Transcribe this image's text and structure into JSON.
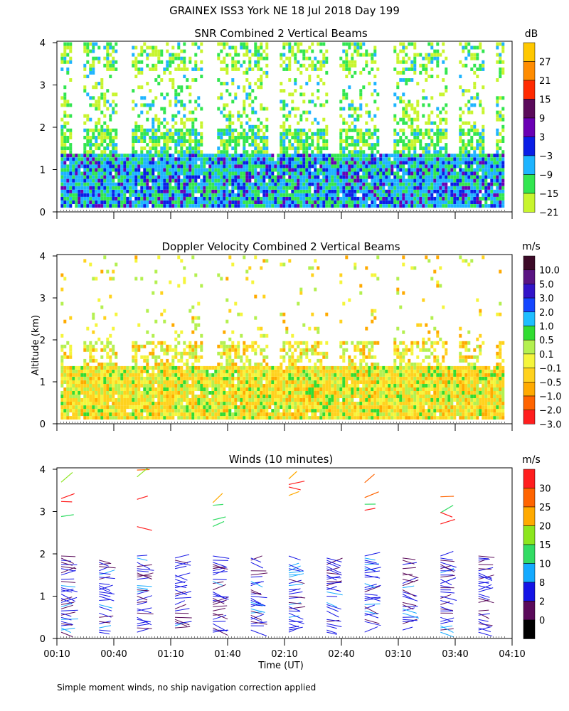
{
  "title": "GRAINEX ISS3 York NE  18 Jul 2018 Day 199",
  "y_axis_label": "Altitude (km)",
  "x_axis_label": "Time (UT)",
  "footnote": "Simple moment winds, no ship navigation correction applied",
  "x_ticks": [
    "00:10",
    "00:40",
    "01:10",
    "01:40",
    "02:10",
    "02:40",
    "03:10",
    "03:40",
    "04:10"
  ],
  "y_ticks": [
    "0",
    "1",
    "2",
    "3",
    "4"
  ],
  "chart_data": [
    {
      "type": "heatmap",
      "title": "SNR Combined 2 Vertical Beams",
      "unit": "dB",
      "xlabel": "Time (UT)",
      "ylabel": "Altitude (km)",
      "xlim": [
        "00:10",
        "04:10"
      ],
      "ylim": [
        0,
        4
      ],
      "colorbar_labels": [
        "27",
        "21",
        "15",
        "9",
        "3",
        "−3",
        "−9",
        "−15",
        "−21"
      ],
      "colorbar_colors": [
        "#ffc800",
        "#ff8c00",
        "#ff2a00",
        "#5a0a5a",
        "#6a00b4",
        "#0a1ee6",
        "#1eb4ff",
        "#32e650",
        "#c8f52d"
      ],
      "summary": "Strong returns (-3 to 9 dB) between 0.2 and 1.4 km; weaker returns (-15 to -21 dB) from 1.4 to 4 km with gaps"
    },
    {
      "type": "heatmap",
      "title": "Doppler Velocity Combined 2 Vertical Beams",
      "unit": "m/s",
      "xlabel": "Time (UT)",
      "ylabel": "Altitude (km)",
      "xlim": [
        "00:10",
        "04:10"
      ],
      "ylim": [
        0,
        4
      ],
      "colorbar_labels": [
        "10.0",
        "5.0",
        "3.0",
        "2.0",
        "1.0",
        "0.5",
        "0.1",
        "−0.1",
        "−0.5",
        "−1.0",
        "−2.0",
        "−3.0"
      ],
      "colorbar_colors": [
        "#3c0a28",
        "#5a1482",
        "#3214c8",
        "#1446ff",
        "#1ebeff",
        "#32dc32",
        "#b4f050",
        "#f5f53c",
        "#ffd21e",
        "#ffaa00",
        "#ff6400",
        "#ff1e1e"
      ],
      "summary": "Mostly -0.1 to -0.5 m/s (yellow/orange) below 1.4 km"
    },
    {
      "type": "scatter",
      "title": "Winds (10 minutes)",
      "unit": "m/s",
      "xlabel": "Time (UT)",
      "ylabel": "Altitude (km)",
      "xlim": [
        "00:10",
        "04:10"
      ],
      "ylim": [
        0,
        4
      ],
      "colorbar_labels": [
        "30",
        "25",
        "20",
        "15",
        "10",
        "8",
        "2",
        "0"
      ],
      "colorbar_colors": [
        "#ff1e1e",
        "#ff6400",
        "#ffaa00",
        "#8ce61e",
        "#32dc64",
        "#14aaff",
        "#1414e6",
        "#5a0a5a",
        "#000000"
      ],
      "profile_times_min": [
        10,
        30,
        50,
        70,
        90,
        110,
        130,
        150,
        170,
        190,
        210,
        230
      ],
      "summary": "Wind barbs 2-8 m/s below 2 km; higher speeds (15-30 m/s) aloft near 3-4 km"
    }
  ]
}
